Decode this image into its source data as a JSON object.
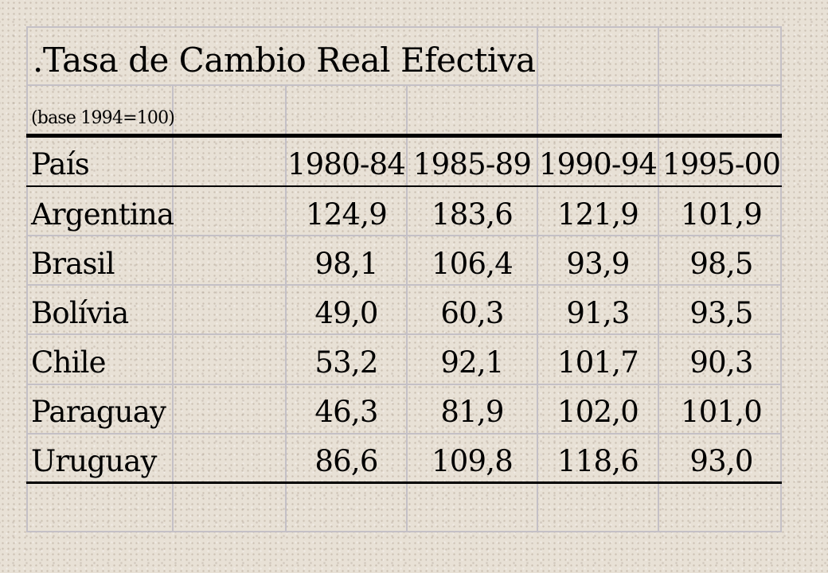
{
  "table": {
    "title": ".Tasa de Cambio Real Efectiva",
    "subtitle": "(base 1994=100)",
    "header": {
      "country_label": "País",
      "periods": [
        "1980-84",
        "1985-89",
        "1990-94",
        "1995-00"
      ]
    },
    "rows": [
      {
        "country": "Argentina",
        "values": [
          "124,9",
          "183,6",
          "121,9",
          "101,9"
        ]
      },
      {
        "country": "Brasil",
        "values": [
          "98,1",
          "106,4",
          "93,9",
          "98,5"
        ]
      },
      {
        "country": "Bolívia",
        "values": [
          "49,0",
          "60,3",
          "91,3",
          "93,5"
        ]
      },
      {
        "country": "Chile",
        "values": [
          "53,2",
          "92,1",
          "101,7",
          "90,3"
        ]
      },
      {
        "country": "Paraguay",
        "values": [
          "46,3",
          "81,9",
          "102,0",
          "101,0"
        ]
      },
      {
        "country": "Uruguay",
        "values": [
          "86,6",
          "109,8",
          "118,6",
          "93,0"
        ]
      }
    ]
  }
}
